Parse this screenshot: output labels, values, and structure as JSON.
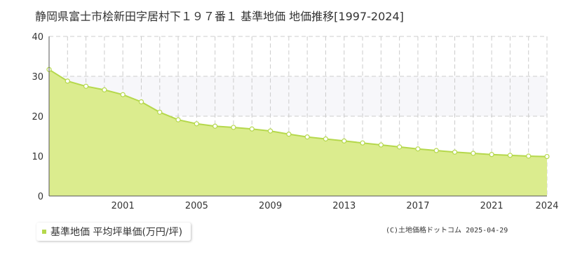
{
  "colors": {
    "area_fill": "#dbec8e",
    "line": "#b5d84c",
    "point_fill": "#ffffff",
    "point_stroke": "#b5d84c",
    "band": "#f7f7fa",
    "grid": "#cccccc",
    "axis": "#555555"
  },
  "legend": {
    "label": "基準地価 平均坪単価(万円/坪)",
    "marker_icon": "square-marker-icon"
  },
  "copyright": "(C)土地価格ドットコム 2025-04-29",
  "chart_data": {
    "type": "area",
    "title": "静岡県富士市桧新田字居村下１９７番１ 基準地価 地価推移[1997-2024]",
    "xlabel": "",
    "ylabel": "",
    "x": [
      1997,
      1998,
      1999,
      2000,
      2001,
      2002,
      2003,
      2004,
      2005,
      2006,
      2007,
      2008,
      2009,
      2010,
      2011,
      2012,
      2013,
      2014,
      2015,
      2016,
      2017,
      2018,
      2019,
      2020,
      2021,
      2022,
      2023,
      2024
    ],
    "series": [
      {
        "name": "基準地価 平均坪単価(万円/坪)",
        "values": [
          31.7,
          28.8,
          27.5,
          26.6,
          25.4,
          23.6,
          21.0,
          19.1,
          18.1,
          17.5,
          17.2,
          16.8,
          16.3,
          15.5,
          14.8,
          14.3,
          13.8,
          13.3,
          12.8,
          12.3,
          11.8,
          11.4,
          11.0,
          10.7,
          10.4,
          10.2,
          10.0,
          9.9
        ]
      }
    ],
    "x_ticks": [
      "2001",
      "2005",
      "2009",
      "2013",
      "2017",
      "2021",
      "2024"
    ],
    "y_ticks": [
      "0",
      "10",
      "20",
      "30",
      "40"
    ],
    "xlim": [
      1997,
      2024
    ],
    "ylim": [
      0,
      40
    ],
    "band_y": [
      20,
      30
    ],
    "grid": true,
    "legend_position": "bottom-left"
  }
}
